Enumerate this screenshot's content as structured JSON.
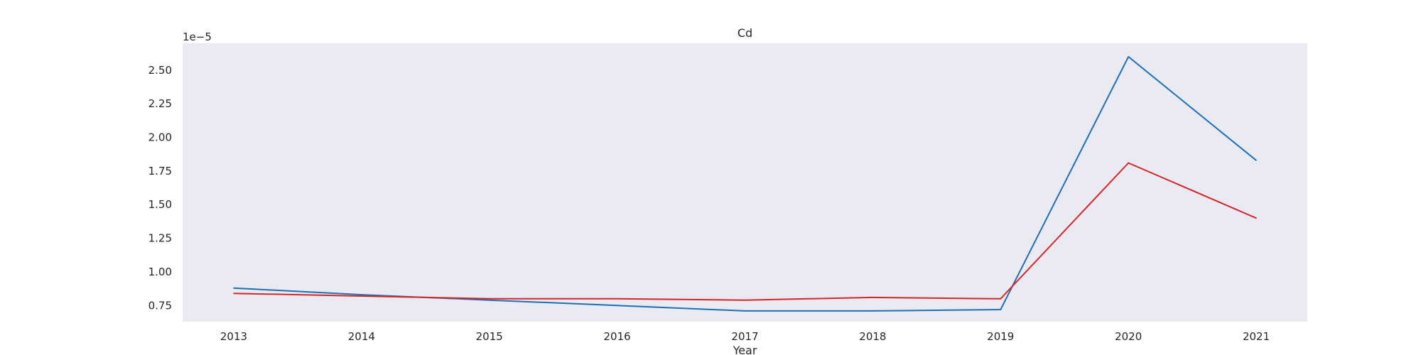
{
  "chart_data": {
    "type": "line",
    "title": "Cd",
    "xlabel": "Year",
    "ylabel": "",
    "y_offset_label": "1e−5",
    "x": [
      "2013",
      "2014",
      "2015",
      "2016",
      "2017",
      "2018",
      "2019",
      "2020",
      "2021"
    ],
    "xlim": [
      2012.6,
      2021.4
    ],
    "ylim": [
      0.63,
      2.7
    ],
    "y_ticks": [
      "0.75",
      "1.00",
      "1.25",
      "1.50",
      "1.75",
      "2.00",
      "2.25",
      "2.50"
    ],
    "grid": false,
    "legend": "none",
    "colors": {
      "plot_background": "#eaeaf2",
      "series_blue": "#1f6fb4",
      "series_red": "#d62728",
      "text": "#262626"
    },
    "series": [
      {
        "color": "#1f6fb4",
        "values": [
          0.88,
          0.83,
          0.79,
          0.75,
          0.71,
          0.71,
          0.72,
          2.6,
          1.83
        ]
      },
      {
        "color": "#d62728",
        "values": [
          0.84,
          0.82,
          0.8,
          0.8,
          0.79,
          0.81,
          0.8,
          1.81,
          1.4
        ]
      }
    ]
  }
}
